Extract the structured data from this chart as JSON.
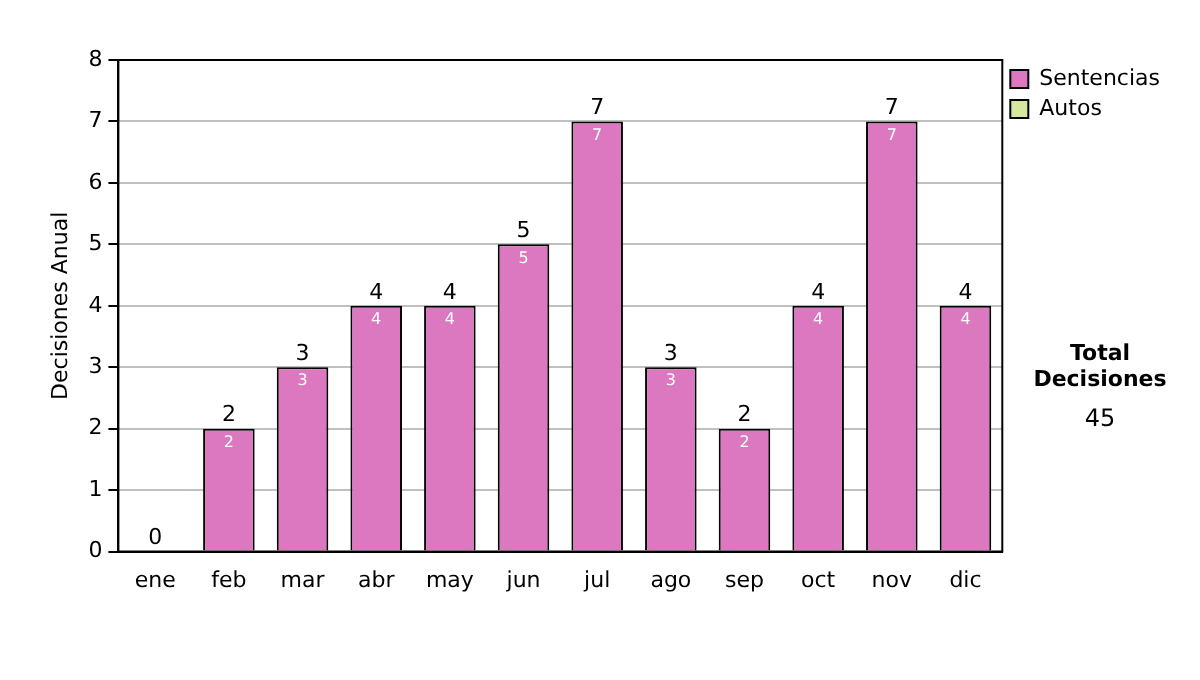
{
  "chart_data": {
    "type": "bar",
    "stacked": true,
    "ylabel": "Decisiones Anual",
    "categories": [
      "ene",
      "feb",
      "mar",
      "abr",
      "may",
      "jun",
      "jul",
      "ago",
      "sep",
      "oct",
      "nov",
      "dic"
    ],
    "series": [
      {
        "name": "Sentencias",
        "color": "#dc78c0",
        "values": [
          0,
          2,
          3,
          4,
          4,
          5,
          7,
          3,
          2,
          4,
          7,
          4
        ],
        "value_labels": [
          null,
          "2",
          "3",
          "4",
          "4",
          "5",
          "7",
          "3",
          "2",
          "4",
          "7",
          "4"
        ]
      },
      {
        "name": "Autos",
        "color": "#d4e8a0",
        "values": [
          0,
          0,
          0,
          0,
          0,
          0,
          0,
          0,
          0,
          0,
          0,
          0
        ]
      }
    ],
    "totals": [
      "0",
      "2",
      "3",
      "4",
      "4",
      "5",
      "7",
      "3",
      "2",
      "4",
      "7",
      "4"
    ],
    "ylim": [
      0,
      8
    ],
    "yticks": [
      0,
      1,
      2,
      3,
      4,
      5,
      6,
      7,
      8
    ],
    "grid": "y",
    "legend": "right",
    "annotations": [
      "Total Decisiones",
      "45"
    ]
  }
}
